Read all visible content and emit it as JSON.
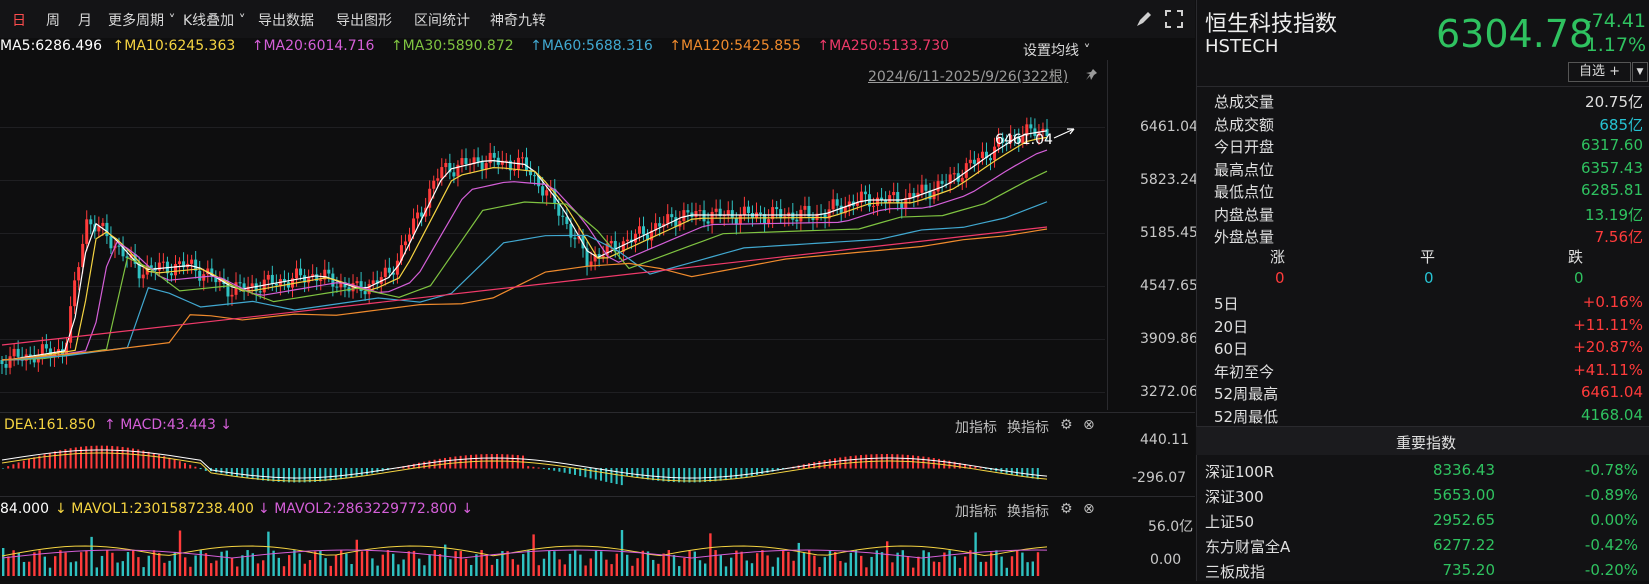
{
  "toolbar": {
    "items": [
      "日",
      "周",
      "月",
      "更多周期",
      "K线叠加",
      "导出数据",
      "导出图形",
      "区间统计",
      "神奇九转"
    ],
    "active": "日"
  },
  "ma": {
    "ma5": "MA5:6286.496",
    "ma10": "MA10:6245.363",
    "ma20": "MA20:6014.716",
    "ma30": "MA30:5890.872",
    "ma60": "MA60:5688.316",
    "ma120": "MA120:5425.855",
    "ma250": "MA250:5133.730",
    "set_label": "设置均线"
  },
  "range_label": "2024/6/11-2025/9/26(322根)",
  "high_mark": "6461.04",
  "price_axis": [
    "6461.04",
    "5823.24",
    "5185.45",
    "4547.65",
    "3909.86",
    "3272.06"
  ],
  "macd": {
    "dea": "DEA:161.850",
    "macd": "MACD:43.443",
    "top": "440.11",
    "bottom": "-296.07",
    "add": "加指标",
    "switch": "换指标"
  },
  "vol": {
    "v": "84.000",
    "mavol1": "MAVOL1:2301587238.400",
    "mavol2": "MAVOL2:2863229772.800",
    "top": "56.0亿",
    "bottom": "0.00",
    "add": "加指标",
    "switch": "换指标"
  },
  "colors": {
    "up": "#ff3b3b",
    "down": "#2fc2c2",
    "green": "#2fc260",
    "ma5": "#ffffff",
    "ma10": "#f5d442",
    "ma20": "#d45fd8",
    "ma30": "#7fc341",
    "ma60": "#41a8d0",
    "ma120": "#f08b2d",
    "ma250": "#f03a6a"
  },
  "panel": {
    "name_cn": "恒生科技指数",
    "name_en": "HSTECH",
    "price": "6304.78",
    "change": "-74.41",
    "pct": "-1.17%",
    "zixuan": "自选 +",
    "stats": [
      {
        "label": "总成交量",
        "value": "20.75亿",
        "cls": "w"
      },
      {
        "label": "总成交额",
        "value": "685亿",
        "cls": "c"
      },
      {
        "label": "今日开盘",
        "value": "6317.60",
        "cls": "g"
      },
      {
        "label": "最高点位",
        "value": "6357.43",
        "cls": "g"
      },
      {
        "label": "最低点位",
        "value": "6285.81",
        "cls": "g"
      },
      {
        "label": "内盘总量",
        "value": "13.19亿",
        "cls": "g"
      },
      {
        "label": "外盘总量",
        "value": "7.56亿",
        "cls": "r"
      }
    ],
    "breadth": {
      "up_label": "涨",
      "flat_label": "平",
      "down_label": "跌",
      "up": "0",
      "flat": "0",
      "down": "0"
    },
    "periods": [
      {
        "label": "5日",
        "value": "+0.16%"
      },
      {
        "label": "20日",
        "value": "+11.11%"
      },
      {
        "label": "60日",
        "value": "+20.87%"
      },
      {
        "label": "年初至今",
        "value": "+41.11%"
      },
      {
        "label": "52周最高",
        "value": "6461.04"
      },
      {
        "label": "52周最低",
        "value": "4168.04"
      }
    ],
    "indices_title": "重要指数",
    "indices": [
      {
        "name": "深证100R",
        "value": "8336.43",
        "pct": "-0.78%"
      },
      {
        "name": "深证300",
        "value": "5653.00",
        "pct": "-0.89%"
      },
      {
        "name": "上证50",
        "value": "2952.65",
        "pct": "0.00%"
      },
      {
        "name": "东方财富全A",
        "value": "6277.22",
        "pct": "-0.42%"
      },
      {
        "name": "三板成指",
        "value": "735.20",
        "pct": "-0.20%"
      }
    ]
  }
}
